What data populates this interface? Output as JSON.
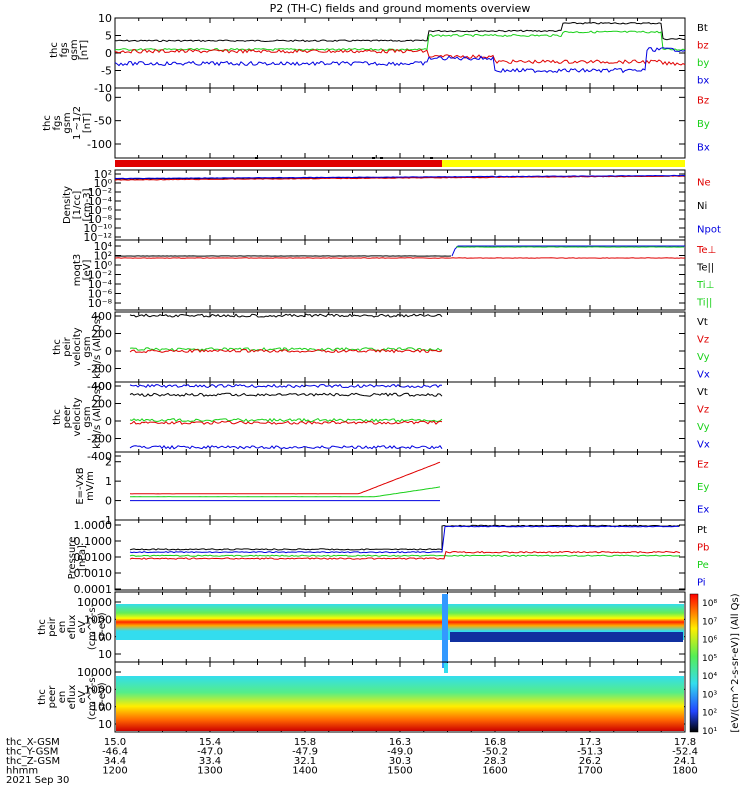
{
  "title": "P2 (TH-C) fields and ground moments overview",
  "colors": {
    "black": "#000000",
    "red": "#e00000",
    "green": "#18d018",
    "blue": "#0000e0",
    "yellow": "#ffff00"
  },
  "chart_data": {
    "type": "line",
    "x_axis": {
      "range": [
        "12:00",
        "18:00"
      ],
      "rows": [
        {
          "label": "thc_X-GSM",
          "values": [
            "15.0",
            "15.4",
            "15.8",
            "16.3",
            "16.8",
            "17.3",
            "17.8"
          ]
        },
        {
          "label": "thc_Y-GSM",
          "values": [
            "-46.4",
            "-47.0",
            "-47.9",
            "-49.0",
            "-50.2",
            "-51.3",
            "-52.4"
          ]
        },
        {
          "label": "thc_Z-GSM",
          "values": [
            "34.4",
            "33.4",
            "32.1",
            "30.3",
            "28.3",
            "26.2",
            "24.1"
          ]
        },
        {
          "label": "hhmm",
          "values": [
            "1200",
            "1300",
            "1400",
            "1500",
            "1600",
            "1700",
            "1800"
          ]
        }
      ],
      "date": "2021 Sep 30"
    },
    "panels": [
      {
        "id": "fgs",
        "ylabel_lines": [
          "thc",
          "fgs",
          "gsm",
          "[nT]"
        ],
        "ylim": [
          -10,
          10
        ],
        "yticks": [
          "10",
          "5",
          "0",
          "-5",
          "-10"
        ],
        "series": [
          {
            "name": "Bt",
            "color": "#000000",
            "approx": "~3.5 nT until 15:15, ~6-7 nT 15:15-16:40, ~8.5 nT 16:40-17:45, then drops to ~4"
          },
          {
            "name": "bz",
            "color": "#e00000",
            "approx": "~0 nT, declining to ~-3 nT after 16:00, oscillating"
          },
          {
            "name": "by",
            "color": "#18d018",
            "approx": "~0.5 nT until 15:15, ~4-5 nT to 16:00, ~6 nT to 17:40"
          },
          {
            "name": "bx",
            "color": "#0000e0",
            "approx": "~-3 nT until 15:15, ~-1 nT to 16:00, ~-4 to -6 nT after"
          }
        ]
      },
      {
        "id": "fgs_1s",
        "ylabel_lines": [
          "thc",
          "fgs",
          "gsm",
          "1 ~1/2",
          "[nT]"
        ],
        "ylim": [
          -130,
          20
        ],
        "yticks": [
          "0",
          "-50",
          "-100"
        ],
        "series": [
          {
            "name": "Bz",
            "color": "#e00000"
          },
          {
            "name": "By",
            "color": "#18d018"
          },
          {
            "name": "Bx",
            "color": "#0000e0"
          }
        ]
      },
      {
        "id": "bar",
        "type": "status-bar",
        "segments": [
          {
            "from": "12:00",
            "to": "15:30",
            "color": "#e00000"
          },
          {
            "from": "15:30",
            "to": "18:00",
            "color": "#ffff00"
          }
        ]
      },
      {
        "id": "density",
        "ylabel_lines": [
          "Density",
          "[1/cc]",
          "[cm-3]"
        ],
        "ylim": [
          1e-14,
          100
        ],
        "log": true,
        "yticks": [
          "10²",
          "10⁰",
          "10⁻²",
          "10⁻⁴",
          "10⁻⁶",
          "10⁻⁸",
          "10⁻¹⁰",
          "10⁻¹²"
        ],
        "series": [
          {
            "name": "Ne",
            "color": "#e00000"
          },
          {
            "name": "Ni",
            "color": "#000000"
          },
          {
            "name": "Npot",
            "color": "#0000e0"
          }
        ]
      },
      {
        "id": "temp",
        "ylabel_lines": [
          "moqt3",
          "[eV]"
        ],
        "ylim": [
          1e-10,
          10000
        ],
        "log": true,
        "yticks": [
          "10⁴",
          "10²",
          "10⁰",
          "10⁻²",
          "10⁻⁴",
          "10⁻⁶",
          "10⁻⁸"
        ],
        "series": [
          {
            "name": "Te⊥",
            "color": "#e00000"
          },
          {
            "name": "Te||",
            "color": "#000000"
          },
          {
            "name": "Ti⊥",
            "color": "#18d018"
          },
          {
            "name": "Ti||",
            "color": "#18d018"
          }
        ]
      },
      {
        "id": "peir_v",
        "ylabel_lines": [
          "thc",
          "peir",
          "velocity",
          "gsm",
          "km/s (All Qs)"
        ],
        "ylim": [
          -400,
          400
        ],
        "yticks": [
          "400",
          "200",
          "0",
          "-200",
          "-400"
        ],
        "series": [
          {
            "name": "Vt",
            "color": "#000000",
            "approx": "~405 km/s, 12:00-15:30"
          },
          {
            "name": "Vz",
            "color": "#e00000",
            "approx": "~0 km/s"
          },
          {
            "name": "Vy",
            "color": "#18d018",
            "approx": "~20 km/s"
          },
          {
            "name": "Vx",
            "color": "#0000e0",
            "approx": "~-400 km/s"
          }
        ]
      },
      {
        "id": "peer_v",
        "ylabel_lines": [
          "thc",
          "peer",
          "velocity",
          "gsm",
          "km/s (All Qs)"
        ],
        "ylim": [
          -400,
          400
        ],
        "yticks": [
          "400",
          "200",
          "0",
          "-200",
          "-400"
        ],
        "series": [
          {
            "name": "Vt",
            "color": "#000000",
            "approx": "~300 km/s, 12:00-15:30"
          },
          {
            "name": "Vz",
            "color": "#e00000",
            "approx": "~-20 km/s"
          },
          {
            "name": "Vy",
            "color": "#18d018",
            "approx": "~10 km/s"
          },
          {
            "name": "Vx",
            "color": "#0000e0",
            "approx": "~-300 km/s"
          }
        ]
      },
      {
        "id": "efield",
        "ylabel_lines": [
          "E=-VxB",
          "mV/m"
        ],
        "ylim": [
          -1,
          2.5
        ],
        "yticks": [
          "2",
          "1",
          "0",
          "-1"
        ],
        "series": [
          {
            "name": "Ez",
            "color": "#e00000",
            "approx": "~0.3 mV/m, rising to ~2 near 15:15-15:30"
          },
          {
            "name": "Ey",
            "color": "#18d018",
            "approx": "~0.1 mV/m, rising to ~1.3 near 15:30"
          },
          {
            "name": "Ex",
            "color": "#0000e0",
            "approx": "~0 mV/m"
          }
        ]
      },
      {
        "id": "pressure",
        "ylabel_lines": [
          "Pressure",
          "[nPa]"
        ],
        "ylim": [
          0.0001,
          2
        ],
        "log": true,
        "yticks": [
          "1.0000",
          "0.1000",
          "0.0100",
          "0.0010",
          "0.0001"
        ],
        "series": [
          {
            "name": "Pt",
            "color": "#000000",
            "approx": "~0.03 nPa, jumps to ~0.9 at 15:30"
          },
          {
            "name": "Pb",
            "color": "#e00000",
            "approx": "~0.008 nPa, ~0.02 after 15:30"
          },
          {
            "name": "Pe",
            "color": "#18d018",
            "approx": "~0.012 nPa"
          },
          {
            "name": "Pi",
            "color": "#0000e0",
            "approx": "~0.02 nPa, ~0.7 after 15:30"
          }
        ]
      },
      {
        "id": "peir_spec",
        "type": "heatmap",
        "ylabel_lines": [
          "thc",
          "peir",
          "en",
          "eflux",
          "eV",
          "(cm^2-s-",
          "sr-eV)"
        ],
        "yticks": [
          "10000",
          "1000",
          "100",
          "10"
        ]
      },
      {
        "id": "peer_spec",
        "type": "heatmap",
        "ylabel_lines": [
          "thc",
          "peer",
          "en",
          "eflux",
          "eV",
          "(cm^2-s-",
          "sr-eV)"
        ],
        "yticks": [
          "10000",
          "1000",
          "100",
          "10"
        ]
      }
    ],
    "colorbar": {
      "label": "[eV/(cm^2-s-sr-eV)] (All Qs)",
      "ticks": [
        "10⁸",
        "10⁷",
        "10⁶",
        "10⁵",
        "10⁴",
        "10³",
        "10²",
        "10¹"
      ]
    }
  }
}
